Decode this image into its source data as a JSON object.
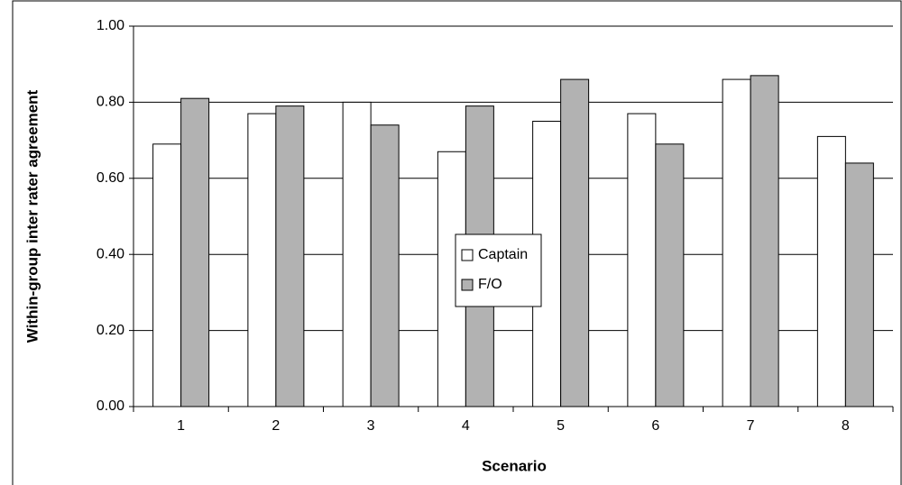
{
  "chart_data": {
    "type": "bar",
    "x_label": "Scenario",
    "y_label": "Within-group inter rater agreement",
    "categories": [
      "1",
      "2",
      "3",
      "4",
      "5",
      "6",
      "7",
      "8"
    ],
    "series": [
      {
        "name": "Captain",
        "color": "#ffffff",
        "values": [
          0.69,
          0.77,
          0.8,
          0.67,
          0.75,
          0.77,
          0.86,
          0.71
        ]
      },
      {
        "name": "F/O",
        "color": "#b2b2b2",
        "values": [
          0.81,
          0.79,
          0.74,
          0.79,
          0.86,
          0.69,
          0.87,
          0.64
        ]
      }
    ],
    "ylim": [
      0,
      1
    ],
    "yticks": [
      {
        "value": 0,
        "label": "0.00"
      },
      {
        "value": 0.2,
        "label": "0.20"
      },
      {
        "value": 0.4,
        "label": "0.40"
      },
      {
        "value": 0.6,
        "label": "0.60"
      },
      {
        "value": 0.8,
        "label": "0.80"
      },
      {
        "value": 1,
        "label": "1.00"
      }
    ],
    "grid": true
  }
}
